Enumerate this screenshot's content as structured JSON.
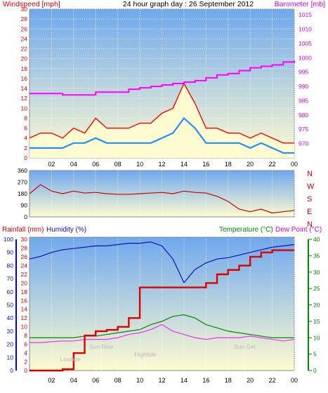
{
  "header": {
    "left_label": "Windspeed [mph]",
    "title": "24 hour graph day : 26 September 2012",
    "right_label": "Barometer [mb]"
  },
  "time_axis": {
    "ticks": [
      "02",
      "04",
      "06",
      "08",
      "10",
      "12",
      "14",
      "16",
      "18",
      "20",
      "22",
      "00"
    ]
  },
  "colors": {
    "wind_gust": "#ff0000",
    "wind_avg": "#1e90ff",
    "wind_fill": "#fffbd0",
    "barometer": "#ff00ff",
    "direction": "#cc0000",
    "rainfall": "#dd0000",
    "humidity": "#1010b0",
    "temperature": "#008800",
    "dewpoint": "#ee33ee",
    "bg_top": "#6fa8ee",
    "bg_bottom": "#fffbd0"
  },
  "chart_data": [
    {
      "type": "line",
      "name": "wind-baro",
      "left_axis": {
        "label": "Windspeed [mph]",
        "ylim": [
          0,
          30
        ],
        "ticks": [
          0,
          2,
          4,
          6,
          8,
          10,
          12,
          14,
          16,
          18,
          20,
          22,
          24,
          26,
          28,
          30
        ]
      },
      "right_axis": {
        "label": "Barometer [mb]",
        "ylim": [
          965,
          1017
        ],
        "ticks": [
          970,
          975,
          980,
          985,
          990,
          995,
          1000,
          1005,
          1010,
          1015
        ]
      },
      "x": [
        0,
        1,
        2,
        3,
        4,
        5,
        6,
        7,
        8,
        9,
        10,
        11,
        12,
        13,
        14,
        15,
        16,
        17,
        18,
        19,
        20,
        21,
        22,
        23,
        24
      ],
      "series": [
        {
          "name": "gust",
          "values": [
            4,
            5,
            5,
            4,
            6,
            5,
            8,
            6,
            6,
            6,
            7,
            7,
            9,
            10,
            15,
            11,
            6,
            6,
            5,
            5,
            4,
            5,
            4,
            3,
            3
          ]
        },
        {
          "name": "average",
          "values": [
            2,
            2,
            2,
            2,
            3,
            3,
            4,
            3,
            3,
            3,
            3,
            3,
            4,
            5,
            8,
            6,
            3,
            3,
            3,
            3,
            2,
            3,
            2,
            1,
            1
          ]
        },
        {
          "name": "barometer",
          "values": [
            987.5,
            987.5,
            987.5,
            987,
            987,
            987,
            988,
            988,
            988,
            989,
            989.5,
            990,
            990.5,
            991,
            991.5,
            992,
            993,
            994,
            994.5,
            995.5,
            996.5,
            997,
            997.5,
            998.5,
            999
          ]
        }
      ]
    },
    {
      "type": "line",
      "name": "wind-direction",
      "left_axis": {
        "ylim": [
          0,
          360
        ],
        "ticks": [
          0,
          90,
          180,
          270,
          360
        ]
      },
      "right_axis": {
        "ticks": [
          "N",
          "W",
          "S",
          "E",
          "N"
        ]
      },
      "x": [
        0,
        1,
        2,
        3,
        4,
        5,
        6,
        7,
        8,
        9,
        10,
        11,
        12,
        13,
        14,
        15,
        16,
        17,
        18,
        19,
        20,
        21,
        22,
        23,
        24
      ],
      "series": [
        {
          "name": "direction",
          "values": [
            180,
            250,
            200,
            180,
            200,
            185,
            190,
            180,
            175,
            175,
            180,
            185,
            190,
            180,
            200,
            190,
            185,
            160,
            120,
            60,
            40,
            60,
            30,
            40,
            50
          ]
        }
      ]
    },
    {
      "type": "line",
      "name": "rain-humidity-temp",
      "left_axes": [
        {
          "label": "Rainfall (mm)",
          "ylim": [
            0,
            30
          ],
          "ticks": [
            0,
            2,
            4,
            6,
            8,
            10,
            12,
            14,
            16,
            18,
            20,
            22,
            24,
            26,
            28,
            30
          ]
        },
        {
          "label": "Humidity (%)",
          "ylim": [
            0,
            100
          ],
          "ticks": [
            0,
            10,
            20,
            30,
            40,
            50,
            60,
            70,
            80,
            90,
            100
          ]
        }
      ],
      "right_axis": {
        "label": "Temperature (°C)",
        "label2": "Dew Point (°C)",
        "ylim": [
          0,
          40
        ],
        "ticks": [
          0,
          5,
          10,
          15,
          20,
          25,
          30,
          35,
          40
        ]
      },
      "x": [
        0,
        1,
        2,
        3,
        4,
        5,
        6,
        7,
        8,
        9,
        10,
        11,
        12,
        13,
        14,
        15,
        16,
        17,
        18,
        19,
        20,
        21,
        22,
        23,
        24
      ],
      "annotations": [
        {
          "text": "Sun Rise",
          "x": 6.5
        },
        {
          "text": "Hightide",
          "x": 10.5
        },
        {
          "text": "Lowtide",
          "x": 3.7
        },
        {
          "text": "Sun Set",
          "x": 19.5
        }
      ],
      "series": [
        {
          "name": "rainfall",
          "values": [
            0,
            0,
            0,
            0.3,
            4,
            8,
            9,
            9.3,
            10,
            12,
            19,
            19,
            19,
            19,
            19,
            19,
            20,
            22,
            23,
            24,
            26,
            27,
            27.5,
            27.5,
            27.5
          ]
        },
        {
          "name": "humidity",
          "values": [
            85,
            87,
            90,
            92,
            93,
            94,
            95,
            95,
            96,
            97,
            97,
            98,
            95,
            85,
            67,
            77,
            82,
            85,
            86,
            88,
            90,
            92,
            94,
            95,
            96
          ]
        },
        {
          "name": "temperature",
          "values": [
            10,
            10,
            10,
            10,
            10,
            10.5,
            10.5,
            11,
            11.5,
            12,
            12.5,
            14,
            15,
            16.5,
            17,
            16,
            14,
            13,
            12,
            11.5,
            11,
            10.5,
            10,
            10,
            10
          ]
        },
        {
          "name": "dewpoint",
          "values": [
            8.5,
            8.5,
            8.8,
            9,
            9,
            9.5,
            9.5,
            9.5,
            10,
            11,
            11.5,
            12.5,
            14,
            12,
            11,
            10,
            9.5,
            10,
            10,
            10,
            10.5,
            10,
            9.5,
            9,
            9.5
          ]
        }
      ]
    }
  ]
}
